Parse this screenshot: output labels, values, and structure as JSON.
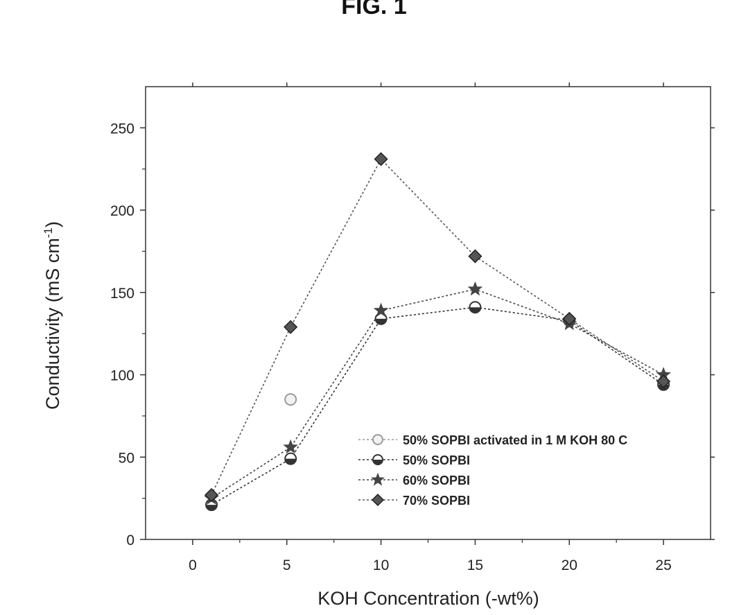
{
  "figure_label": "FIG. 1",
  "chart_data": {
    "type": "line",
    "xlabel": "KOH Concentration (-wt%)",
    "ylabel_main": "Conductivity (mS cm",
    "ylabel_sup": "-1",
    "ylabel_end": ")",
    "xlim": [
      -2.5,
      27.5
    ],
    "ylim": [
      0,
      275
    ],
    "xticks": [
      0,
      5,
      10,
      15,
      20,
      25
    ],
    "yticks": [
      0,
      50,
      100,
      150,
      200,
      250
    ],
    "grid": false,
    "legend_position": "bottom-right",
    "series": [
      {
        "name": "50% SOPBI activated in 1 M KOH 80 C",
        "marker": "open-circle",
        "color": "#9a9a9a",
        "x": [
          5.2
        ],
        "y": [
          85
        ]
      },
      {
        "name": "50% SOPBI",
        "marker": "half-circle",
        "color": "#333333",
        "x": [
          1,
          5.2,
          10,
          15,
          20,
          25
        ],
        "y": [
          21,
          49,
          134,
          141,
          133,
          94
        ]
      },
      {
        "name": "60% SOPBI",
        "marker": "star",
        "color": "#444444",
        "x": [
          1,
          5.2,
          10,
          15,
          20,
          25
        ],
        "y": [
          25,
          56,
          139,
          152,
          131,
          100
        ]
      },
      {
        "name": "70% SOPBI",
        "marker": "diamond",
        "color": "#555555",
        "x": [
          1,
          5.2,
          10,
          15,
          20,
          25
        ],
        "y": [
          27,
          129,
          231,
          172,
          134,
          96
        ]
      }
    ]
  }
}
